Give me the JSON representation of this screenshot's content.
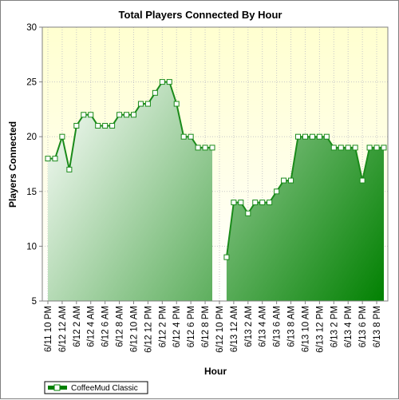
{
  "chart_data": {
    "type": "area",
    "title": "Total Players Connected By Hour",
    "xlabel": "Hour",
    "ylabel": "Players Connected",
    "ylim": [
      5,
      30
    ],
    "yticks": [
      5,
      10,
      15,
      20,
      25,
      30
    ],
    "grid": true,
    "legend_position": "bottom-left",
    "x_tick_labels": [
      "6/11 10 PM",
      "6/12 12 AM",
      "6/12 2 AM",
      "6/12 4 AM",
      "6/12 6 AM",
      "6/12 8 AM",
      "6/12 10 AM",
      "6/12 12 PM",
      "6/12 2 PM",
      "6/12 4 PM",
      "6/12 6 PM",
      "6/12 8 PM",
      "6/12 10 PM",
      "6/13 12 AM",
      "6/13 2 AM",
      "6/13 4 AM",
      "6/13 6 AM",
      "6/13 8 AM",
      "6/13 10 AM",
      "6/13 12 PM",
      "6/13 2 PM",
      "6/13 4 PM",
      "6/13 6 PM",
      "6/13 8 PM"
    ],
    "series": [
      {
        "name": "CoffeeMud Classic",
        "color": "#008000",
        "values": [
          18,
          18,
          20,
          17,
          21,
          22,
          22,
          21,
          21,
          21,
          22,
          22,
          22,
          23,
          23,
          24,
          25,
          25,
          23,
          20,
          20,
          19,
          19,
          19,
          null,
          9,
          14,
          14,
          13,
          14,
          14,
          14,
          15,
          16,
          16,
          20,
          20,
          20,
          20,
          20,
          19,
          19,
          19,
          19,
          16,
          19,
          19,
          19
        ]
      }
    ]
  },
  "colors": {
    "plot_background_top": "#ffffd0",
    "plot_background_bottom": "#ffffff",
    "fill_light": "#ffffff",
    "fill_dark": "#008000",
    "line": "#1a8a1a",
    "grid": "#c8c8c8"
  }
}
